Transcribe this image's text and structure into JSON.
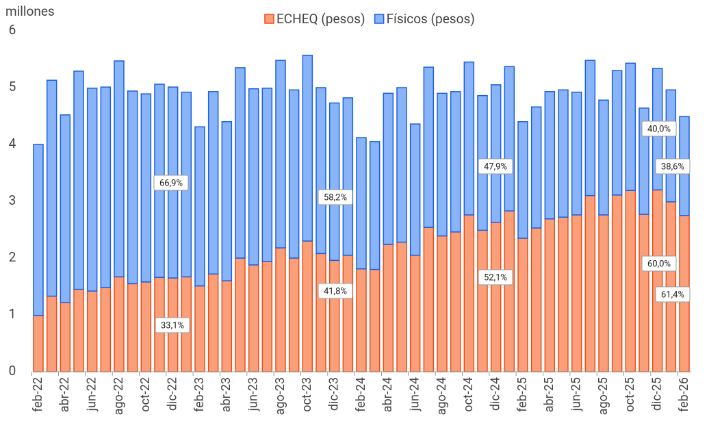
{
  "chart_data": {
    "type": "stacked_bar",
    "y_label": "millones",
    "categories": [
      "feb-22",
      null,
      "abr-22",
      null,
      "jun-22",
      null,
      "ago-22",
      null,
      "oct-22",
      null,
      "dic-22",
      null,
      "feb-23",
      null,
      "abr-23",
      null,
      "jun-23",
      null,
      "ago-23",
      null,
      "oct-23",
      null,
      "dic-23",
      null,
      "feb-24",
      null,
      "abr-24",
      null,
      "jun-24",
      null,
      "ago-24",
      null,
      "oct-24",
      null,
      "dic-24",
      null,
      "feb-25",
      null,
      "abr-25",
      null,
      "jun-25",
      null,
      "ago-25",
      null,
      "oct-25",
      null,
      "dic-25",
      null,
      "feb-26"
    ],
    "series": [
      {
        "name": "ECHEQ (pesos)",
        "color": "#f9a07a",
        "edge": "#ee4b16",
        "values": [
          0.99,
          1.33,
          1.22,
          1.45,
          1.42,
          1.48,
          1.67,
          1.55,
          1.58,
          1.66,
          1.65,
          1.67,
          1.51,
          1.72,
          1.6,
          2.0,
          1.88,
          1.94,
          2.18,
          2.0,
          2.3,
          2.08,
          1.96,
          2.05,
          1.81,
          1.8,
          2.24,
          2.28,
          2.05,
          2.54,
          2.39,
          2.46,
          2.76,
          2.49,
          2.63,
          2.83,
          2.35,
          2.53,
          2.69,
          2.72,
          2.76,
          3.1,
          2.76,
          3.11,
          3.19,
          2.77,
          3.2,
          2.99,
          2.75
        ]
      },
      {
        "name": "Físicos (pesos)",
        "color": "#8ab4f8",
        "edge": "#1a5fe0",
        "values": [
          3.01,
          3.8,
          3.3,
          3.84,
          3.57,
          3.53,
          3.8,
          3.39,
          3.31,
          3.4,
          3.36,
          3.25,
          2.8,
          3.21,
          2.8,
          3.35,
          3.1,
          3.05,
          3.3,
          2.96,
          3.27,
          2.92,
          2.77,
          2.77,
          2.31,
          2.25,
          2.66,
          2.72,
          2.31,
          2.82,
          2.51,
          2.47,
          2.69,
          2.37,
          2.42,
          2.54,
          2.05,
          2.13,
          2.24,
          2.24,
          2.16,
          2.38,
          2.02,
          2.19,
          2.24,
          1.87,
          2.14,
          1.97,
          1.74
        ]
      }
    ],
    "annotations": [
      "66,9%",
      "33,1%",
      "58,2%",
      "41,8%",
      "47,9%",
      "52,1%",
      "40,0%",
      "60,0%",
      "38,6%",
      "61,4%"
    ],
    "ylim": [
      0,
      6
    ],
    "yticks": [
      0,
      1,
      2,
      3,
      4,
      5,
      6
    ],
    "grid": false
  }
}
